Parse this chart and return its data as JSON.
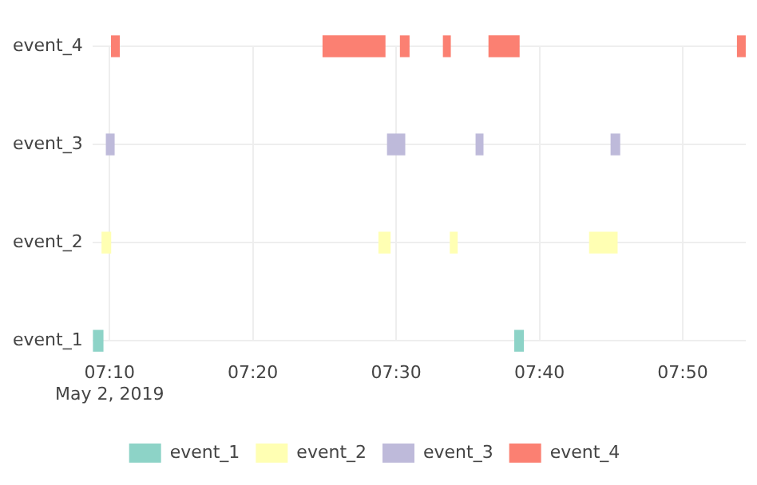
{
  "chart_data": {
    "type": "bar",
    "orientation": "horizontal",
    "categories": [
      "event_4",
      "event_3",
      "event_2",
      "event_1"
    ],
    "series": [
      {
        "name": "event_1",
        "color": "#8dd3c7",
        "base": [
          null,
          null,
          null,
          7.148
        ],
        "values": [
          null,
          null,
          null,
          0.011
        ]
      },
      {
        "name": "event_2",
        "color": "#ffffb3",
        "base": [
          null,
          null,
          7.158,
          null
        ],
        "values": [
          null,
          null,
          0.01,
          null
        ]
      },
      {
        "name": "event_3",
        "color": "#bebada",
        "base": [
          null,
          7.163,
          null,
          null
        ],
        "values": [
          null,
          0.009,
          null,
          null
        ]
      },
      {
        "name": "event_4",
        "color": "#fb8072",
        "base": [
          7.169,
          null,
          null,
          null
        ],
        "values": [
          0.009,
          null,
          null,
          null
        ]
      },
      {
        "color": "#8dd3c7",
        "base": [
          null,
          null,
          null,
          7.638
        ],
        "values": [
          null,
          null,
          null,
          0.01
        ]
      },
      {
        "color": "#ffffb3",
        "base": [
          null,
          null,
          7.48,
          null
        ],
        "values": [
          null,
          null,
          0.013,
          null
        ]
      },
      {
        "color": "#ffffb3",
        "base": [
          null,
          null,
          7.563,
          null
        ],
        "values": [
          null,
          null,
          0.008,
          null
        ]
      },
      {
        "color": "#ffffb3",
        "base": [
          null,
          null,
          7.725,
          null
        ],
        "values": [
          null,
          null,
          0.032,
          null
        ]
      },
      {
        "color": "#bebada",
        "base": [
          null,
          7.49,
          null,
          null
        ],
        "values": [
          null,
          0.02,
          null,
          null
        ]
      },
      {
        "color": "#bebada",
        "base": [
          null,
          7.593,
          null,
          null
        ],
        "values": [
          null,
          0.008,
          null,
          null
        ]
      },
      {
        "color": "#bebada",
        "base": [
          null,
          7.75,
          null,
          null
        ],
        "values": [
          null,
          0.01,
          null,
          null
        ]
      },
      {
        "color": "#fb8072",
        "base": [
          7.415,
          null,
          null,
          null
        ],
        "values": [
          0.072,
          null,
          null,
          null
        ]
      },
      {
        "color": "#fb8072",
        "base": [
          7.505,
          null,
          null,
          null
        ],
        "values": [
          0.01,
          null,
          null,
          null
        ]
      },
      {
        "color": "#fb8072",
        "base": [
          7.555,
          null,
          null,
          null
        ],
        "values": [
          0.008,
          null,
          null,
          null
        ]
      },
      {
        "color": "#fb8072",
        "base": [
          7.608,
          null,
          null,
          null
        ],
        "values": [
          0.035,
          null,
          null,
          null
        ]
      },
      {
        "color": "#fb8072",
        "base": [
          7.897,
          null,
          null,
          null
        ],
        "values": [
          0.009,
          null,
          null,
          null
        ]
      }
    ],
    "xlim": [
      7.1467,
      7.9067
    ],
    "xticks": [
      {
        "value": 7.1667,
        "label": "07:10\nMay 2, 2019"
      },
      {
        "value": 7.3333,
        "label": "07:20"
      },
      {
        "value": 7.5,
        "label": "07:30"
      },
      {
        "value": 7.6667,
        "label": "07:40"
      },
      {
        "value": 7.8333,
        "label": "07:50"
      }
    ],
    "grid": true,
    "legend": "bottom"
  }
}
